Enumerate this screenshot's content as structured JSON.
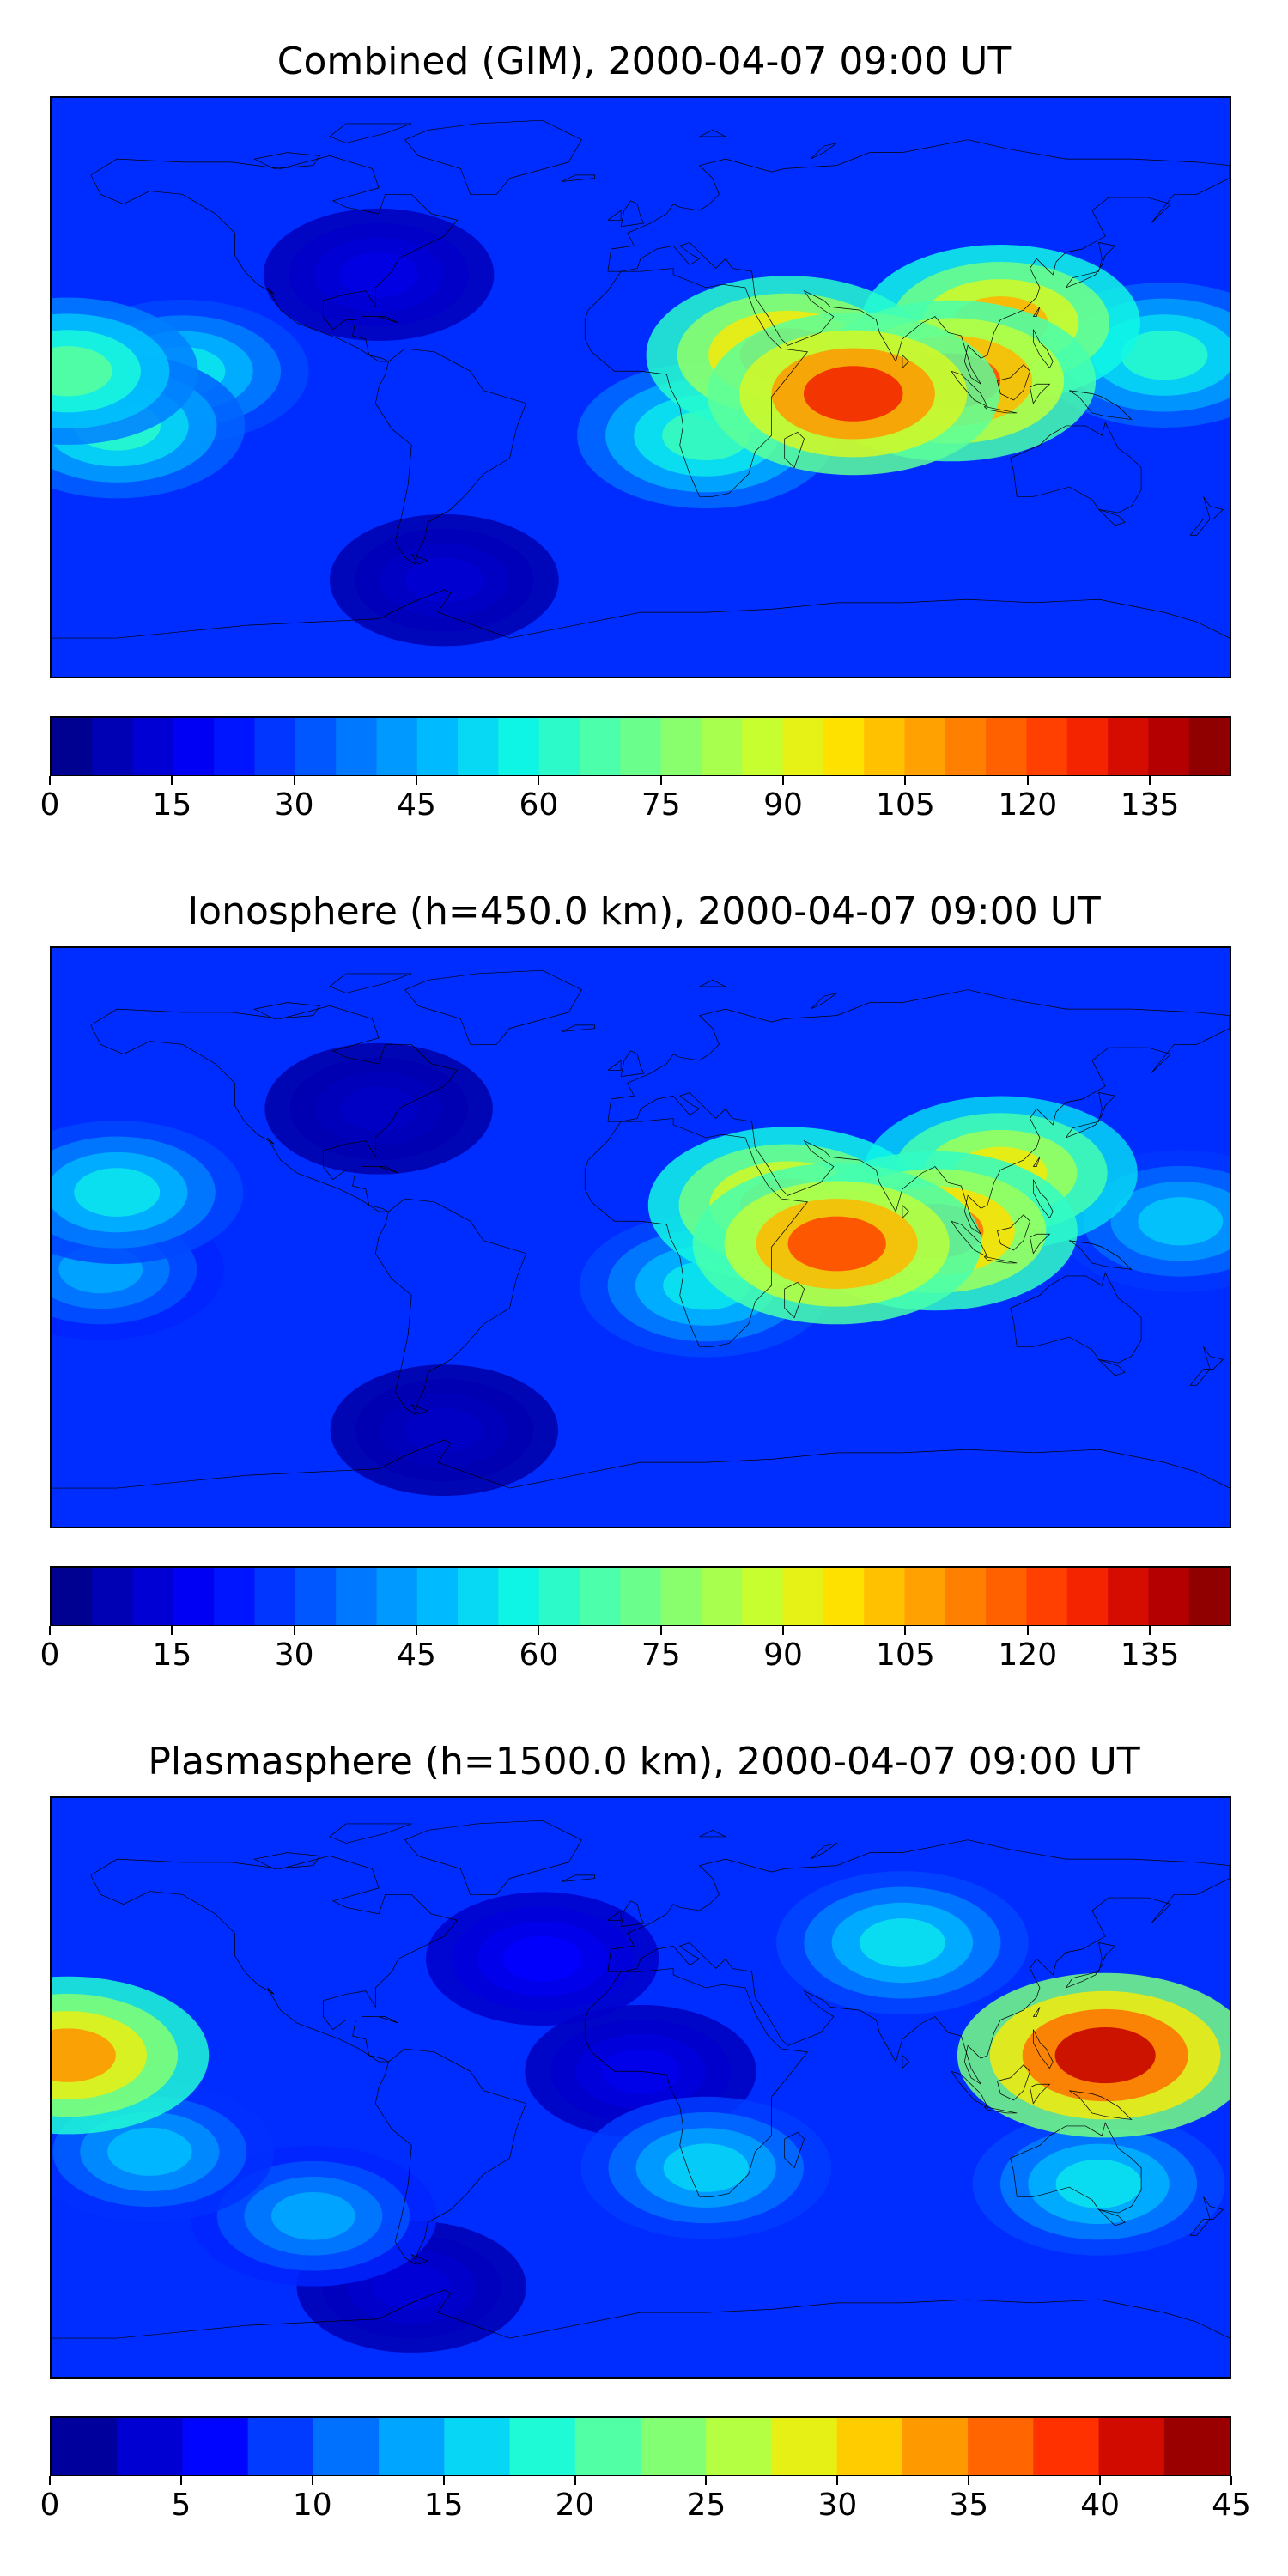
{
  "colors": {
    "jet": [
      "#00007f",
      "#0000c4",
      "#0000ff",
      "#0040ff",
      "#0080ff",
      "#00c0ff",
      "#10f8e4",
      "#4cffaa",
      "#88ff6e",
      "#c4ff33",
      "#ffe600",
      "#ffa800",
      "#ff6a00",
      "#ff2c00",
      "#c30000",
      "#7f0000"
    ]
  },
  "chart_data": [
    {
      "type": "heatmap",
      "title": "Combined (GIM), 2000-04-07 09:00 UT",
      "projection": "global equirectangular map with coastlines",
      "grid": false,
      "colorbar": {
        "min": 0,
        "max": 145,
        "levels": 29,
        "ticks": [
          0,
          15,
          30,
          45,
          60,
          75,
          90,
          105,
          120,
          135
        ],
        "placement": "bottom"
      },
      "features": [
        {
          "lon": 65,
          "lat": -2,
          "value": 128
        },
        {
          "lon": 95,
          "lat": 2,
          "value": 122
        },
        {
          "lon": 45,
          "lat": 10,
          "value": 112
        },
        {
          "lon": 110,
          "lat": 20,
          "value": 105
        },
        {
          "lon": -175,
          "lat": 5,
          "value": 70
        },
        {
          "lon": -160,
          "lat": -12,
          "value": 62
        },
        {
          "lon": -140,
          "lat": 5,
          "value": 55
        },
        {
          "lon": 20,
          "lat": -15,
          "value": 65
        },
        {
          "lon": 160,
          "lat": 10,
          "value": 62
        },
        {
          "lon": -60,
          "lat": -60,
          "value": 12
        },
        {
          "lon": -80,
          "lat": 35,
          "value": 15
        }
      ]
    },
    {
      "type": "heatmap",
      "title": "Ionosphere  (h=450.0 km), 2000-04-07 09:00 UT",
      "projection": "global equirectangular map with coastlines",
      "grid": false,
      "colorbar": {
        "min": 0,
        "max": 145,
        "levels": 29,
        "ticks": [
          0,
          15,
          30,
          45,
          60,
          75,
          90,
          105,
          120,
          135
        ],
        "placement": "bottom"
      },
      "features": [
        {
          "lon": 60,
          "lat": -2,
          "value": 122
        },
        {
          "lon": 90,
          "lat": 2,
          "value": 115
        },
        {
          "lon": 45,
          "lat": 10,
          "value": 105
        },
        {
          "lon": 110,
          "lat": 20,
          "value": 95
        },
        {
          "lon": -160,
          "lat": 14,
          "value": 55
        },
        {
          "lon": -165,
          "lat": -10,
          "value": 45
        },
        {
          "lon": 20,
          "lat": -15,
          "value": 55
        },
        {
          "lon": 165,
          "lat": 5,
          "value": 50
        },
        {
          "lon": -60,
          "lat": -60,
          "value": 10
        },
        {
          "lon": -80,
          "lat": 40,
          "value": 10
        }
      ]
    },
    {
      "type": "heatmap",
      "title": "Plasmasphere (h=1500.0 km), 2000-04-07 09:00 UT",
      "projection": "global equirectangular map with coastlines",
      "grid": false,
      "colorbar": {
        "min": 0,
        "max": 45,
        "levels": 18,
        "ticks": [
          0,
          5,
          10,
          15,
          20,
          25,
          30,
          35,
          40,
          45
        ],
        "placement": "bottom"
      },
      "features": [
        {
          "lon": 142,
          "lat": 10,
          "value": 42
        },
        {
          "lon": -175,
          "lat": 10,
          "value": 34
        },
        {
          "lon": 80,
          "lat": 45,
          "value": 17
        },
        {
          "lon": 20,
          "lat": -25,
          "value": 16
        },
        {
          "lon": -150,
          "lat": -20,
          "value": 15
        },
        {
          "lon": -100,
          "lat": -40,
          "value": 14
        },
        {
          "lon": 140,
          "lat": -30,
          "value": 17
        },
        {
          "lon": 0,
          "lat": 5,
          "value": 5
        },
        {
          "lon": -70,
          "lat": -62,
          "value": 4
        },
        {
          "lon": -30,
          "lat": 40,
          "value": 6
        }
      ]
    }
  ]
}
